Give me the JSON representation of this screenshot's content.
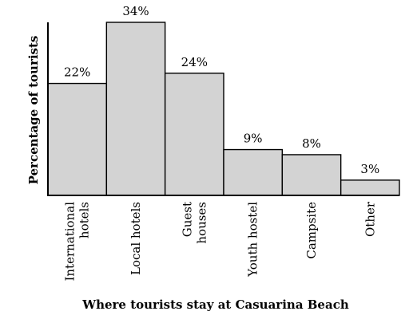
{
  "chart_data": {
    "type": "bar",
    "title": "",
    "xlabel": "Where tourists stay at Casuarina Beach",
    "ylabel": "Percentage of tourists",
    "ylim": [
      0,
      34
    ],
    "grid": false,
    "categories": [
      [
        "International",
        "hotels"
      ],
      [
        "Local hotels"
      ],
      [
        "Guest",
        "houses"
      ],
      [
        "Youth hostel"
      ],
      [
        "Campsite"
      ],
      [
        "Other"
      ]
    ],
    "values": [
      22,
      34,
      24,
      9,
      8,
      3
    ],
    "value_labels": [
      "22%",
      "34%",
      "24%",
      "9%",
      "8%",
      "3%"
    ],
    "colors": {
      "bar_fill": "#d3d3d3",
      "outline": "#000000"
    }
  }
}
